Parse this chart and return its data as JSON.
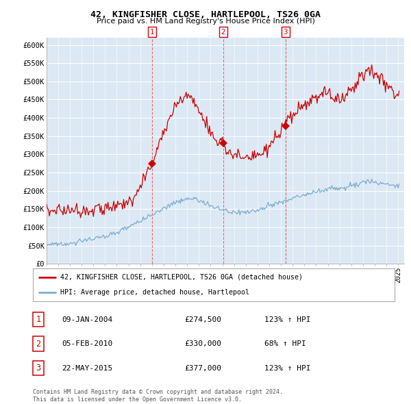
{
  "title1": "42, KINGFISHER CLOSE, HARTLEPOOL, TS26 0GA",
  "title2": "Price paid vs. HM Land Registry's House Price Index (HPI)",
  "plot_bg_color": "#dce9f5",
  "ylim": [
    0,
    620000
  ],
  "yticks": [
    0,
    50000,
    100000,
    150000,
    200000,
    250000,
    300000,
    350000,
    400000,
    450000,
    500000,
    550000,
    600000
  ],
  "ytick_labels": [
    "£0",
    "£50K",
    "£100K",
    "£150K",
    "£200K",
    "£250K",
    "£300K",
    "£350K",
    "£400K",
    "£450K",
    "£500K",
    "£550K",
    "£600K"
  ],
  "red_line_color": "#cc0000",
  "blue_line_color": "#7aadcf",
  "vline_color": "#dd4444",
  "sale_years": [
    2004.03,
    2010.09,
    2015.39
  ],
  "sale_prices": [
    274500,
    330000,
    377000
  ],
  "sale_labels": [
    "1",
    "2",
    "3"
  ],
  "sale_date_strs": [
    "09-JAN-2004",
    "05-FEB-2010",
    "22-MAY-2015"
  ],
  "sale_price_strs": [
    "£274,500",
    "£330,000",
    "£377,000"
  ],
  "sale_hpi_strs": [
    "123% ↑ HPI",
    "68% ↑ HPI",
    "123% ↑ HPI"
  ],
  "legend_line1": "42, KINGFISHER CLOSE, HARTLEPOOL, TS26 0GA (detached house)",
  "legend_line2": "HPI: Average price, detached house, Hartlepool",
  "footer1": "Contains HM Land Registry data © Crown copyright and database right 2024.",
  "footer2": "This data is licensed under the Open Government Licence v3.0.",
  "red_key": [
    1995.0,
    1996.0,
    1997.0,
    1998.0,
    1999.0,
    2000.0,
    2001.0,
    2002.0,
    2003.0,
    2003.5,
    2004.03,
    2004.5,
    2005.0,
    2005.5,
    2006.0,
    2006.5,
    2007.0,
    2007.3,
    2007.7,
    2008.0,
    2008.5,
    2009.0,
    2009.5,
    2010.09,
    2010.5,
    2011.0,
    2011.5,
    2012.0,
    2012.5,
    2013.0,
    2013.5,
    2014.0,
    2014.5,
    2015.0,
    2015.39,
    2015.7,
    2016.0,
    2016.5,
    2017.0,
    2017.5,
    2018.0,
    2018.5,
    2019.0,
    2019.5,
    2020.0,
    2020.5,
    2021.0,
    2021.5,
    2022.0,
    2022.5,
    2023.0,
    2023.5,
    2024.0,
    2024.5,
    2025.0
  ],
  "red_val": [
    148000,
    148000,
    148000,
    148000,
    150000,
    152000,
    155000,
    170000,
    210000,
    245000,
    274500,
    320000,
    360000,
    400000,
    430000,
    455000,
    460000,
    455000,
    440000,
    420000,
    390000,
    360000,
    340000,
    330000,
    310000,
    300000,
    295000,
    285000,
    290000,
    295000,
    305000,
    320000,
    340000,
    360000,
    377000,
    395000,
    410000,
    420000,
    430000,
    445000,
    455000,
    465000,
    465000,
    460000,
    450000,
    460000,
    480000,
    500000,
    520000,
    530000,
    525000,
    510000,
    495000,
    475000,
    460000
  ],
  "blue_key": [
    1995.0,
    1996.0,
    1997.0,
    1998.0,
    1999.0,
    2000.0,
    2001.0,
    2002.0,
    2003.0,
    2004.0,
    2005.0,
    2006.0,
    2007.0,
    2007.5,
    2008.0,
    2008.5,
    2009.0,
    2009.5,
    2010.0,
    2010.5,
    2011.0,
    2011.5,
    2012.0,
    2012.5,
    2013.0,
    2013.5,
    2014.0,
    2014.5,
    2015.0,
    2015.5,
    2016.0,
    2016.5,
    2017.0,
    2017.5,
    2018.0,
    2018.5,
    2019.0,
    2019.5,
    2020.0,
    2020.5,
    2021.0,
    2021.5,
    2022.0,
    2022.5,
    2023.0,
    2023.5,
    2024.0,
    2024.5,
    2025.0
  ],
  "blue_val": [
    52000,
    54000,
    57000,
    62000,
    68000,
    76000,
    85000,
    100000,
    118000,
    135000,
    152000,
    168000,
    178000,
    180000,
    175000,
    168000,
    158000,
    152000,
    148000,
    145000,
    143000,
    142000,
    141000,
    143000,
    147000,
    152000,
    158000,
    163000,
    168000,
    173000,
    178000,
    183000,
    188000,
    193000,
    198000,
    202000,
    205000,
    207000,
    205000,
    207000,
    212000,
    218000,
    225000,
    228000,
    225000,
    220000,
    218000,
    215000,
    213000
  ]
}
